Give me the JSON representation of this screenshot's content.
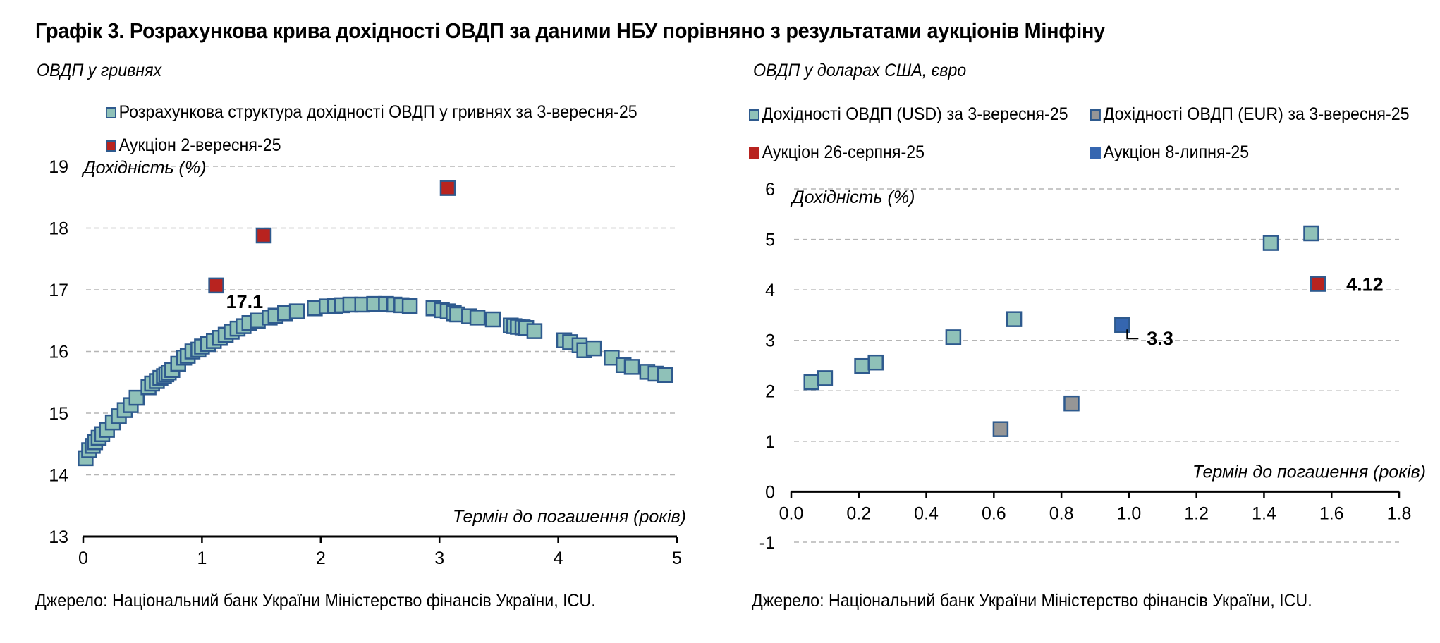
{
  "title": "Графік 3. Розрахункова крива дохідності ОВДП за даними НБУ порівняно з результатами аукціонів Мінфіну",
  "source": "Джерело: Національний банк України Міністерство фінансів України, ICU.",
  "chart_data": [
    {
      "type": "scatter",
      "subtitle": "ОВДП у гривнях",
      "ylabel": "Дохідність (%)",
      "xlabel": "Термін до погашення (років)",
      "xlim": [
        0,
        5
      ],
      "ylim": [
        13,
        19
      ],
      "x_ticks": [
        "0",
        "1",
        "2",
        "3",
        "4",
        "5"
      ],
      "y_ticks": [
        "13",
        "14",
        "15",
        "16",
        "17",
        "18",
        "19"
      ],
      "grid": "horizontal dashed",
      "legend_position": "top-left",
      "colors": {
        "curve": "#8fc1b8",
        "auction": "#b8231f",
        "marker_edge": "#2e5a8e"
      },
      "series": [
        {
          "name": "Розрахункова структура дохідності ОВДП у гривнях за 3-вересня-25",
          "points": [
            [
              0.02,
              14.27
            ],
            [
              0.05,
              14.4
            ],
            [
              0.08,
              14.47
            ],
            [
              0.1,
              14.53
            ],
            [
              0.13,
              14.6
            ],
            [
              0.16,
              14.66
            ],
            [
              0.2,
              14.73
            ],
            [
              0.25,
              14.85
            ],
            [
              0.3,
              14.95
            ],
            [
              0.35,
              15.05
            ],
            [
              0.4,
              15.13
            ],
            [
              0.45,
              15.25
            ],
            [
              0.55,
              15.42
            ],
            [
              0.58,
              15.48
            ],
            [
              0.62,
              15.52
            ],
            [
              0.65,
              15.57
            ],
            [
              0.68,
              15.6
            ],
            [
              0.7,
              15.63
            ],
            [
              0.72,
              15.66
            ],
            [
              0.75,
              15.7
            ],
            [
              0.8,
              15.8
            ],
            [
              0.85,
              15.9
            ],
            [
              0.88,
              15.93
            ],
            [
              0.92,
              16.0
            ],
            [
              0.97,
              16.03
            ],
            [
              1.0,
              16.08
            ],
            [
              1.05,
              16.12
            ],
            [
              1.1,
              16.17
            ],
            [
              1.15,
              16.22
            ],
            [
              1.2,
              16.27
            ],
            [
              1.25,
              16.32
            ],
            [
              1.3,
              16.37
            ],
            [
              1.35,
              16.41
            ],
            [
              1.4,
              16.46
            ],
            [
              1.47,
              16.5
            ],
            [
              1.57,
              16.55
            ],
            [
              1.62,
              16.58
            ],
            [
              1.7,
              16.62
            ],
            [
              1.8,
              16.65
            ],
            [
              1.95,
              16.7
            ],
            [
              2.05,
              16.73
            ],
            [
              2.12,
              16.74
            ],
            [
              2.18,
              16.75
            ],
            [
              2.25,
              16.76
            ],
            [
              2.35,
              16.76
            ],
            [
              2.45,
              16.77
            ],
            [
              2.55,
              16.77
            ],
            [
              2.62,
              16.76
            ],
            [
              2.68,
              16.75
            ],
            [
              2.75,
              16.74
            ],
            [
              2.95,
              16.7
            ],
            [
              3.02,
              16.67
            ],
            [
              3.07,
              16.65
            ],
            [
              3.12,
              16.62
            ],
            [
              3.15,
              16.6
            ],
            [
              3.25,
              16.57
            ],
            [
              3.32,
              16.55
            ],
            [
              3.45,
              16.52
            ],
            [
              3.6,
              16.42
            ],
            [
              3.63,
              16.41
            ],
            [
              3.66,
              16.4
            ],
            [
              3.7,
              16.39
            ],
            [
              3.73,
              16.38
            ],
            [
              3.8,
              16.33
            ],
            [
              4.05,
              16.18
            ],
            [
              4.1,
              16.15
            ],
            [
              4.18,
              16.1
            ],
            [
              4.22,
              16.02
            ],
            [
              4.3,
              16.05
            ],
            [
              4.45,
              15.9
            ],
            [
              4.55,
              15.78
            ],
            [
              4.62,
              15.75
            ],
            [
              4.75,
              15.67
            ],
            [
              4.82,
              15.64
            ],
            [
              4.9,
              15.62
            ]
          ]
        },
        {
          "name": "Аукціон 2-вересня-25",
          "points": [
            [
              1.12,
              17.07
            ],
            [
              1.52,
              17.88
            ],
            [
              3.07,
              18.65
            ]
          ]
        }
      ],
      "annotations": [
        {
          "text": "17.1",
          "x": 1.12,
          "y": 17.07
        }
      ]
    },
    {
      "type": "scatter",
      "subtitle": "ОВДП у доларах США, євро",
      "ylabel": "Дохідність (%)",
      "xlabel": "Термін до погашення (років)",
      "xlim": [
        0,
        1.8
      ],
      "ylim": [
        -1,
        6
      ],
      "x_ticks": [
        "0.0",
        "0.2",
        "0.4",
        "0.6",
        "0.8",
        "1.0",
        "1.2",
        "1.4",
        "1.6",
        "1.8"
      ],
      "y_ticks": [
        "-1",
        "0",
        "1",
        "2",
        "3",
        "4",
        "5",
        "6"
      ],
      "grid": "horizontal dashed",
      "legend_position": "top",
      "colors": {
        "usd": "#8fc1b8",
        "eur": "#969696",
        "auction_aug": "#b8231f",
        "auction_jul": "#3566b0",
        "marker_edge": "#2e5a8e"
      },
      "series": [
        {
          "name": "Дохідності ОВДП (USD) за 3-вересня-25",
          "points": [
            [
              0.06,
              2.17
            ],
            [
              0.1,
              2.25
            ],
            [
              0.21,
              2.49
            ],
            [
              0.25,
              2.56
            ],
            [
              0.48,
              3.06
            ],
            [
              0.66,
              3.42
            ],
            [
              1.42,
              4.93
            ],
            [
              1.54,
              5.12
            ]
          ]
        },
        {
          "name": "Дохідності ОВДП (EUR) за 3-вересня-25",
          "points": [
            [
              0.62,
              1.24
            ],
            [
              0.83,
              1.75
            ]
          ]
        },
        {
          "name": "Аукціон 26-серпня-25",
          "points": [
            [
              1.56,
              4.12
            ]
          ]
        },
        {
          "name": "Аукціон 8-липня-25",
          "points": [
            [
              0.98,
              3.3
            ]
          ]
        }
      ],
      "annotations": [
        {
          "text": "4.12",
          "x": 1.56,
          "y": 4.12
        },
        {
          "text": "3.3",
          "x": 0.98,
          "y": 3.3
        }
      ]
    }
  ]
}
